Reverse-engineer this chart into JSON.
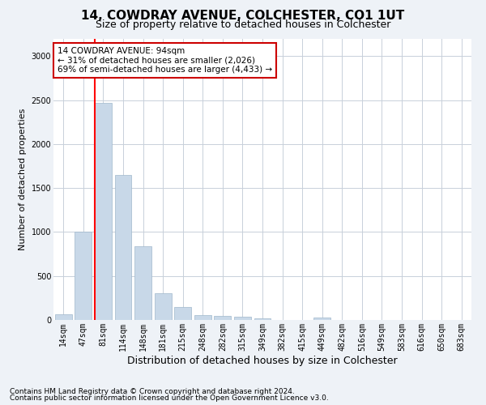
{
  "title": "14, COWDRAY AVENUE, COLCHESTER, CO1 1UT",
  "subtitle": "Size of property relative to detached houses in Colchester",
  "xlabel": "Distribution of detached houses by size in Colchester",
  "ylabel": "Number of detached properties",
  "categories": [
    "14sqm",
    "47sqm",
    "81sqm",
    "114sqm",
    "148sqm",
    "181sqm",
    "215sqm",
    "248sqm",
    "282sqm",
    "315sqm",
    "349sqm",
    "382sqm",
    "415sqm",
    "449sqm",
    "482sqm",
    "516sqm",
    "549sqm",
    "583sqm",
    "616sqm",
    "650sqm",
    "683sqm"
  ],
  "values": [
    60,
    1000,
    2470,
    1650,
    840,
    300,
    145,
    55,
    50,
    40,
    20,
    0,
    0,
    30,
    0,
    0,
    0,
    0,
    0,
    0,
    0
  ],
  "bar_color": "#c8d8e8",
  "bar_edgecolor": "#a0b8cc",
  "red_line_index": 2,
  "annotation_line1": "14 COWDRAY AVENUE: 94sqm",
  "annotation_line2": "← 31% of detached houses are smaller (2,026)",
  "annotation_line3": "69% of semi-detached houses are larger (4,433) →",
  "annotation_box_color": "#ffffff",
  "annotation_box_edgecolor": "#cc0000",
  "ylim": [
    0,
    3200
  ],
  "yticks": [
    0,
    500,
    1000,
    1500,
    2000,
    2500,
    3000
  ],
  "footnote1": "Contains HM Land Registry data © Crown copyright and database right 2024.",
  "footnote2": "Contains public sector information licensed under the Open Government Licence v3.0.",
  "bg_color": "#eef2f7",
  "plot_bg_color": "#ffffff",
  "grid_color": "#c8d0da",
  "title_fontsize": 11,
  "subtitle_fontsize": 9,
  "xlabel_fontsize": 9,
  "ylabel_fontsize": 8,
  "tick_fontsize": 7,
  "footnote_fontsize": 6.5
}
